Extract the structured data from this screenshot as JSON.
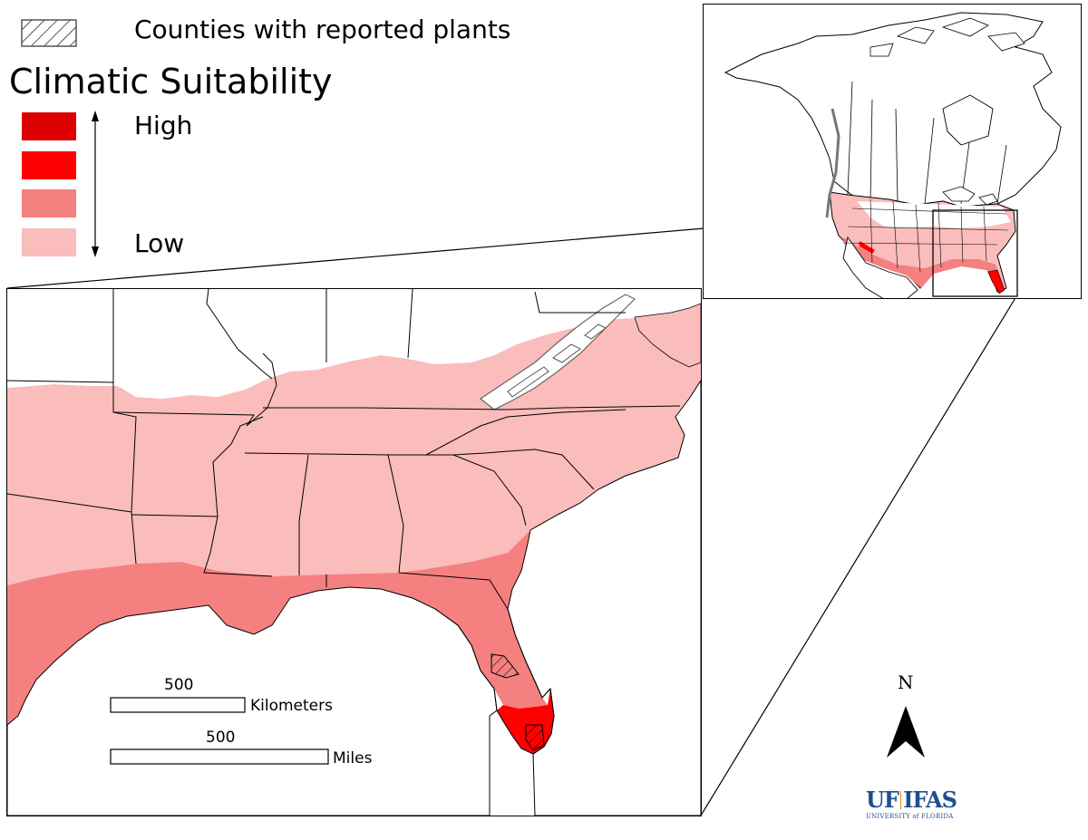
{
  "legend": {
    "counties_label": "Counties with reported plants",
    "title": "Climatic Suitability",
    "high_label": "High",
    "low_label": "Low",
    "classes": [
      {
        "level": "very-high",
        "color": "#dc0000"
      },
      {
        "level": "high",
        "color": "#ff0000"
      },
      {
        "level": "medium",
        "color": "#f58080"
      },
      {
        "level": "low",
        "color": "#fbbcbc"
      }
    ]
  },
  "scalebars": {
    "km_value": "500",
    "km_unit": "Kilometers",
    "mi_value": "500",
    "mi_unit": "Miles"
  },
  "north_arrow": {
    "label": "N"
  },
  "logo": {
    "uf": "UF",
    "ifas": "IFAS",
    "sub": "UNIVERSITY of FLORIDA"
  },
  "colors": {
    "very_high": "#dc0000",
    "high": "#ff0000",
    "medium": "#f58080",
    "low": "#fbbcbc",
    "unsuitable": "#ffffff",
    "border": "#000000"
  }
}
